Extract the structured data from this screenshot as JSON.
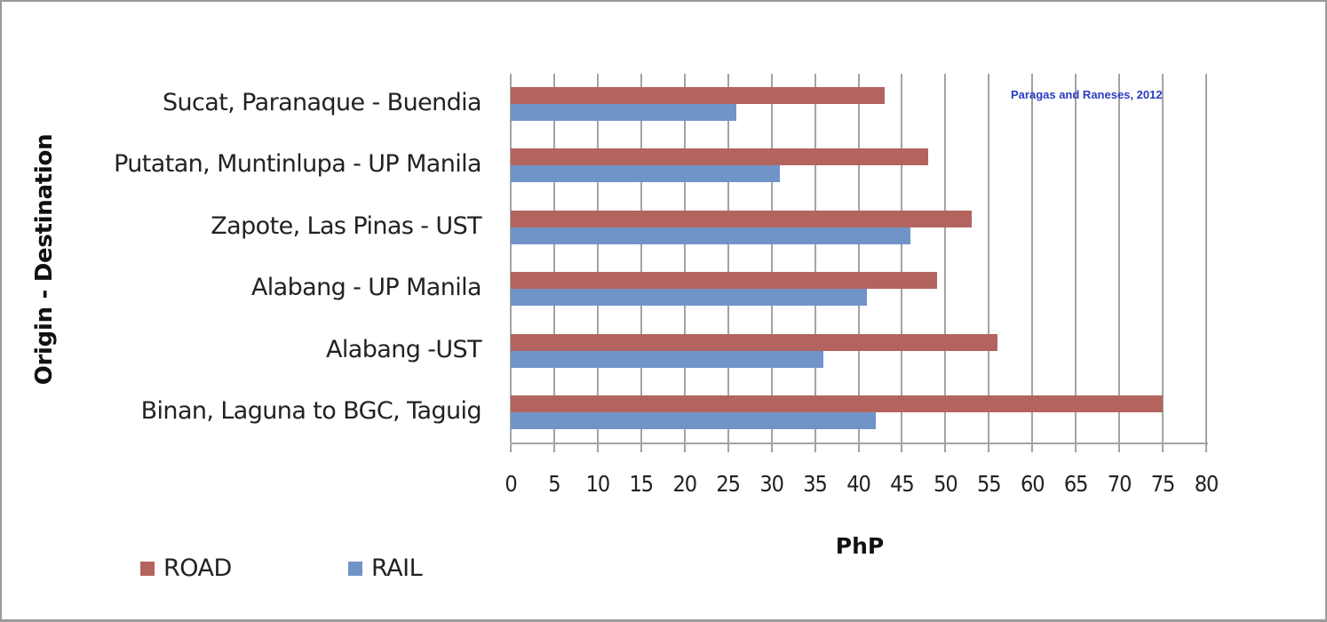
{
  "colors": {
    "road": "#b3645f",
    "rail": "#7094c8",
    "grid": "#a3a3a3",
    "annotation": "#2a3cc4"
  },
  "annotation": "Paragas and Raneses, 2012",
  "legend": [
    {
      "label": "ROAD",
      "series": "road"
    },
    {
      "label": "RAIL",
      "series": "rail"
    }
  ],
  "chart_data": {
    "type": "bar",
    "orientation": "horizontal",
    "title": "",
    "xlabel": "PhP",
    "ylabel": "Origin - Destination",
    "xlim": [
      0,
      80
    ],
    "xticks": [
      0,
      5,
      10,
      15,
      20,
      25,
      30,
      35,
      40,
      45,
      50,
      55,
      60,
      65,
      70,
      75,
      80
    ],
    "grid": "vertical",
    "legend_position": "bottom-left",
    "annotations": [
      "Paragas and Raneses, 2012"
    ],
    "categories": [
      "Sucat, Paranaque - Buendia",
      "Putatan, Muntinlupa - UP Manila",
      "Zapote, Las Pinas - UST",
      "Alabang - UP Manila",
      "Alabang -UST",
      "Binan, Laguna to BGC, Taguig"
    ],
    "series": [
      {
        "name": "ROAD",
        "values": [
          43,
          48,
          53,
          49,
          56,
          75
        ]
      },
      {
        "name": "RAIL",
        "values": [
          26,
          31,
          46,
          41,
          36,
          42
        ]
      }
    ]
  }
}
